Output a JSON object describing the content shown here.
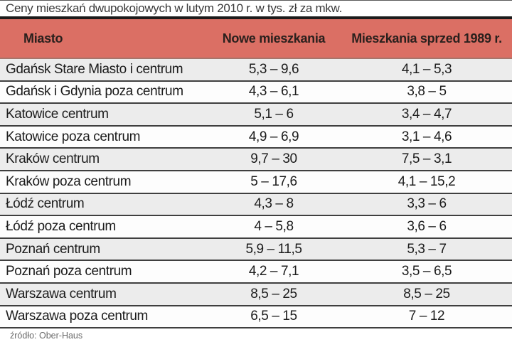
{
  "title": "Ceny mieszkań dwupokojowych w lutym 2010 r. w tys. zł za mkw.",
  "source": "źródło: Ober-Haus",
  "colors": {
    "header_bg": "#db6f64",
    "row_alt_bg": "#ececec",
    "row_bg": "#fdfdfd",
    "title_divider": "#1b1b1b",
    "row_border": "#3f3f3f",
    "header_text": "#2a201d",
    "source_text": "#6b6b6b"
  },
  "chart_data": {
    "type": "table",
    "title": "Ceny mieszkań dwupokojowych w lutym 2010 r. w tys. zł za mkw.",
    "columns": [
      "Miasto",
      "Nowe mieszkania",
      "Mieszkania sprzed 1989 r."
    ],
    "rows": [
      [
        "Gdańsk Stare Miasto i centrum",
        "5,3 – 9,6",
        "4,1 – 5,3"
      ],
      [
        "Gdańsk i Gdynia poza centrum",
        "4,3 – 6,1",
        "3,8 – 5"
      ],
      [
        "Katowice centrum",
        "5,1 – 6",
        "3,4 – 4,7"
      ],
      [
        "Katowice poza centrum",
        "4,9 – 6,9",
        "3,1 – 4,6"
      ],
      [
        "Kraków centrum",
        "9,7 – 30",
        "7,5 – 3,1"
      ],
      [
        "Kraków poza centrum",
        "5 – 17,6",
        "4,1 – 15,2"
      ],
      [
        "Łódź centrum",
        "4,3 – 8",
        "3,3 – 6"
      ],
      [
        "Łódź poza centrum",
        "4 – 5,8",
        "3,6 – 6"
      ],
      [
        "Poznań centrum",
        "5,9 – 11,5",
        "5,3 – 7"
      ],
      [
        "Poznań poza centrum",
        "4,2 – 7,1",
        "3,5 – 6,5"
      ],
      [
        "Warszawa centrum",
        "8,5 – 25",
        "8,5 – 25"
      ],
      [
        "Warszawa poza centrum",
        "6,5 – 15",
        "7 – 12"
      ]
    ],
    "source": "źródło: Ober-Haus",
    "layout": {
      "alternating_row_shading": true,
      "value_unit": "tys. zł za mkw.",
      "decimal_separator": ","
    }
  }
}
